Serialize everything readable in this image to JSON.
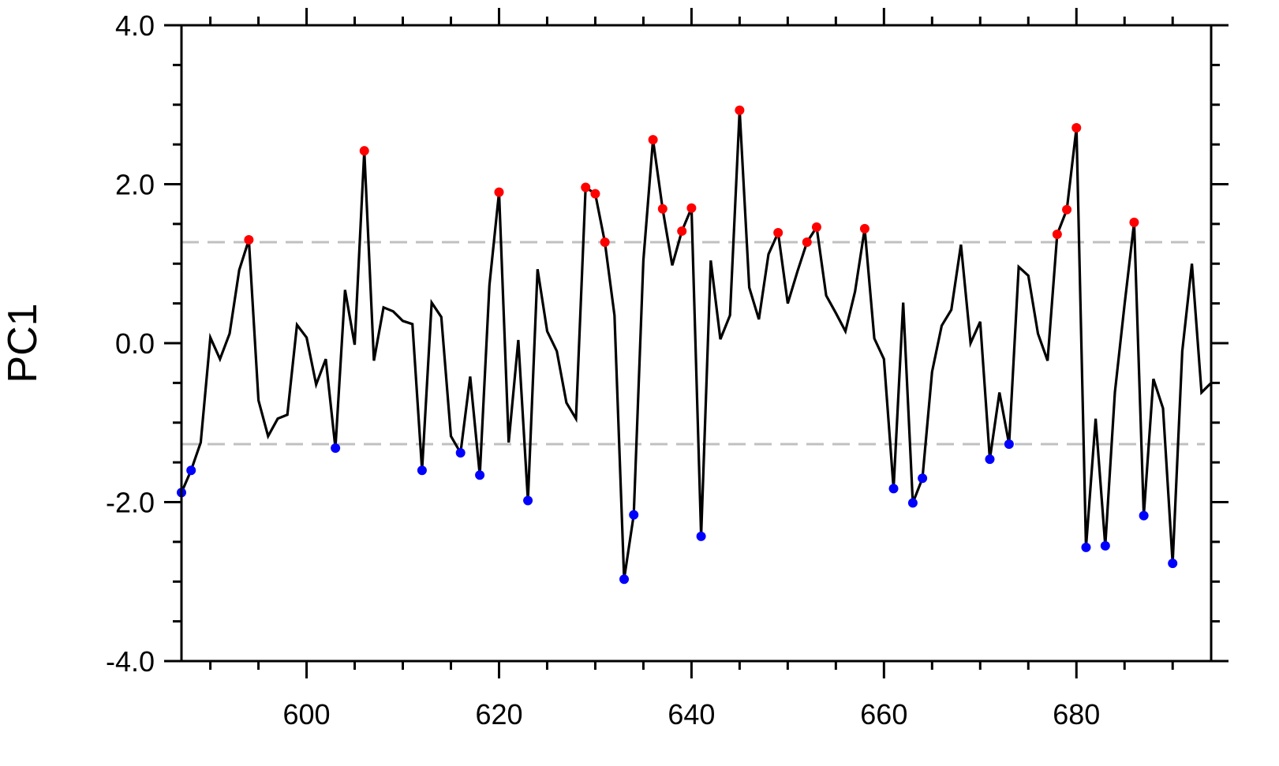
{
  "chart_data": {
    "type": "line",
    "ylabel": "PC1",
    "xlim": [
      587,
      694
    ],
    "ylim": [
      -4.0,
      4.0
    ],
    "x_ticks": [
      600,
      620,
      640,
      660,
      680
    ],
    "y_ticks": [
      4.0,
      2.0,
      0.0,
      -2.0,
      -4.0
    ],
    "y_tick_labels": [
      "4.0",
      "2.0",
      "0.0",
      "-2.0",
      "-4.0"
    ],
    "thresholds": [
      1.27,
      -1.27
    ],
    "grid": false,
    "colors": {
      "line": "#000000",
      "above": "#ff0000",
      "below": "#0000ff",
      "threshold": "#c0c0c0"
    },
    "series": [
      {
        "x": [
          587,
          588,
          589,
          590,
          591,
          592,
          593,
          594,
          595,
          596,
          597,
          598,
          599,
          600,
          601,
          602,
          603,
          604,
          605,
          606,
          607,
          608,
          609,
          610,
          611,
          612,
          613,
          614,
          615,
          616,
          617,
          618,
          619,
          620,
          621,
          622,
          623,
          624,
          625,
          626,
          627,
          628,
          629,
          630,
          631,
          632,
          633,
          634,
          635,
          636,
          637,
          638,
          639,
          640,
          641,
          642,
          643,
          644,
          645,
          646,
          647,
          648,
          649,
          650,
          651,
          652,
          653,
          654,
          655,
          656,
          657,
          658,
          659,
          660,
          661,
          662,
          663,
          664,
          665,
          666,
          667,
          668,
          669,
          670,
          671,
          672,
          673,
          674,
          675,
          676,
          677,
          678,
          679,
          680,
          681,
          682,
          683,
          684,
          685,
          686,
          687,
          688,
          689,
          690,
          691,
          692,
          693,
          694
        ],
        "values": [
          -1.88,
          -1.6,
          -1.25,
          0.07,
          -0.2,
          0.12,
          0.92,
          1.3,
          -0.72,
          -1.17,
          -0.95,
          -0.9,
          0.23,
          0.07,
          -0.52,
          -0.2,
          -1.32,
          0.67,
          -0.02,
          2.42,
          -0.22,
          0.45,
          0.4,
          0.28,
          0.24,
          -1.6,
          0.51,
          0.33,
          -1.17,
          -1.38,
          -0.42,
          -1.66,
          0.73,
          1.9,
          -1.25,
          0.04,
          -1.98,
          0.93,
          0.15,
          -0.1,
          -0.75,
          -0.95,
          1.96,
          1.88,
          1.27,
          0.35,
          -2.97,
          -2.16,
          1.04,
          2.56,
          1.69,
          0.98,
          1.41,
          1.7,
          -2.43,
          1.04,
          0.05,
          0.35,
          2.93,
          0.7,
          0.3,
          1.12,
          1.39,
          0.5,
          0.9,
          1.27,
          1.46,
          0.6,
          0.38,
          0.15,
          0.65,
          1.44,
          0.06,
          -0.2,
          -1.83,
          0.51,
          -2.01,
          -1.7,
          -0.36,
          0.22,
          0.42,
          1.24,
          0.0,
          0.27,
          -1.46,
          -0.62,
          -1.27,
          0.96,
          0.85,
          0.12,
          -0.22,
          1.37,
          1.68,
          2.71,
          -2.57,
          -0.95,
          -2.55,
          -0.62,
          0.48,
          1.52,
          -2.17,
          -0.45,
          -0.82,
          -2.77,
          -0.1,
          1.0,
          -0.62,
          -0.5
        ]
      }
    ]
  }
}
